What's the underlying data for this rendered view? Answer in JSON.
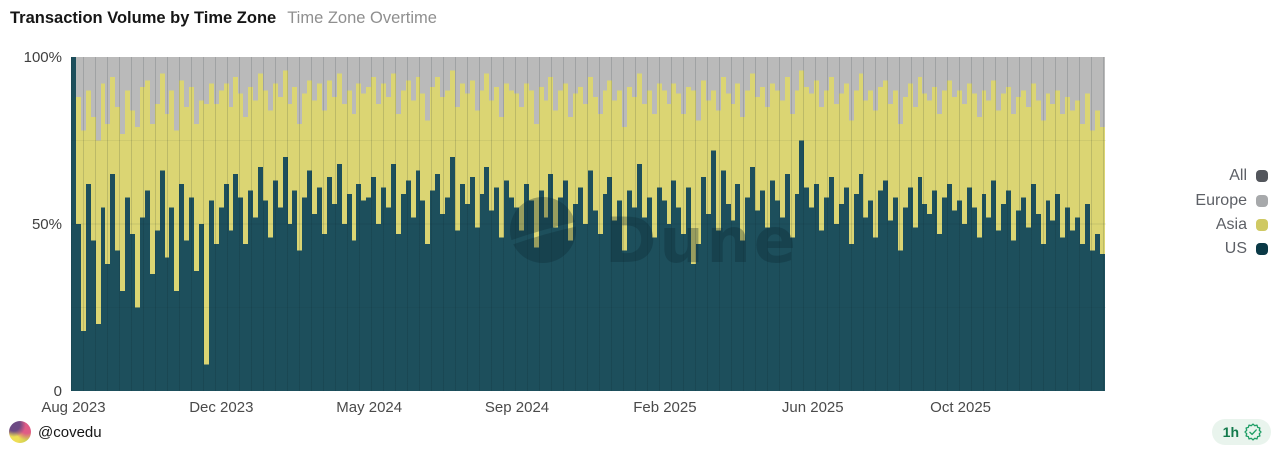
{
  "header": {
    "title": "Transaction Volume by Time Zone",
    "subtitle": "Time Zone Overtime"
  },
  "chart_data": {
    "type": "bar",
    "stacked": "100-percent-stacked",
    "title": "Transaction Volume by Time Zone",
    "x_range": [
      "Aug 2023",
      "Dec 2025"
    ],
    "x_tick_labels": [
      "Aug 2023",
      "Dec 2023",
      "May 2024",
      "Sep 2024",
      "Feb 2025",
      "Jun 2025",
      "Oct 2025"
    ],
    "x_tick_indices": [
      0,
      30,
      60,
      90,
      120,
      150,
      180
    ],
    "y_ticks": [
      {
        "value": 0,
        "label": "0"
      },
      {
        "value": 50,
        "label": "50%"
      },
      {
        "value": 100,
        "label": "100%"
      }
    ],
    "ylim": [
      0,
      100
    ],
    "n_points": 210,
    "grid": "faint vertical lines every ~12px, faint horizontal line at 50%",
    "legend_position": "right",
    "series": [
      {
        "name": "US",
        "color": "#1d4f5c",
        "values": [
          100,
          50,
          18,
          62,
          45,
          20,
          55,
          38,
          65,
          42,
          30,
          58,
          47,
          25,
          52,
          60,
          35,
          48,
          66,
          40,
          55,
          30,
          62,
          45,
          58,
          36,
          50,
          8,
          57,
          44,
          55,
          62,
          48,
          65,
          58,
          44,
          60,
          52,
          67,
          57,
          46,
          63,
          55,
          70,
          50,
          60,
          42,
          58,
          66,
          53,
          61,
          47,
          64,
          56,
          68,
          50,
          59,
          45,
          62,
          57,
          58,
          64,
          50,
          61,
          55,
          68,
          47,
          59,
          63,
          52,
          66,
          57,
          44,
          60,
          65,
          53,
          58,
          70,
          48,
          62,
          56,
          64,
          49,
          59,
          67,
          54,
          61,
          46,
          63,
          58,
          55,
          48,
          62,
          57,
          43,
          60,
          52,
          65,
          49,
          58,
          63,
          45,
          56,
          61,
          50,
          66,
          54,
          47,
          59,
          64,
          51,
          57,
          42,
          60,
          55,
          68,
          52,
          58,
          46,
          61,
          57,
          50,
          63,
          55,
          47,
          61,
          38,
          44,
          64,
          53,
          72,
          48,
          66,
          56,
          51,
          62,
          45,
          58,
          67,
          54,
          60,
          49,
          63,
          57,
          52,
          65,
          46,
          59,
          75,
          61,
          55,
          62,
          48,
          58,
          64,
          50,
          56,
          61,
          44,
          59,
          65,
          52,
          57,
          46,
          60,
          63,
          51,
          58,
          42,
          55,
          61,
          49,
          64,
          56,
          53,
          60,
          47,
          58,
          62,
          54,
          57,
          50,
          61,
          55,
          46,
          59,
          52,
          63,
          48,
          56,
          60,
          45,
          54,
          58,
          49,
          62,
          53,
          44,
          57,
          51,
          59,
          46,
          55,
          48,
          52,
          44,
          56,
          42,
          47,
          41
        ]
      },
      {
        "name": "Asia",
        "color": "#dbd573",
        "values": "remainder: 100 - US - Europe"
      },
      {
        "name": "Europe",
        "color": "#bababa",
        "values": [
          0,
          12,
          22,
          10,
          18,
          25,
          8,
          20,
          6,
          15,
          23,
          10,
          16,
          21,
          9,
          7,
          20,
          14,
          5,
          17,
          10,
          22,
          7,
          15,
          9,
          20,
          13,
          14,
          8,
          14,
          10,
          8,
          15,
          6,
          11,
          18,
          9,
          13,
          5,
          10,
          16,
          8,
          12,
          4,
          14,
          9,
          20,
          11,
          7,
          13,
          8,
          16,
          7,
          12,
          5,
          14,
          10,
          17,
          8,
          11,
          9,
          6,
          14,
          8,
          12,
          5,
          17,
          10,
          7,
          13,
          6,
          11,
          19,
          9,
          6,
          12,
          10,
          4,
          15,
          8,
          11,
          7,
          16,
          10,
          5,
          13,
          9,
          18,
          8,
          10,
          11,
          15,
          8,
          10,
          20,
          9,
          13,
          6,
          16,
          10,
          8,
          18,
          11,
          9,
          14,
          6,
          12,
          17,
          10,
          7,
          13,
          10,
          21,
          9,
          12,
          5,
          14,
          10,
          17,
          8,
          10,
          14,
          8,
          11,
          17,
          9,
          10,
          19,
          7,
          13,
          10,
          16,
          6,
          11,
          14,
          8,
          18,
          10,
          5,
          12,
          9,
          15,
          8,
          10,
          13,
          6,
          17,
          10,
          4,
          9,
          11,
          7,
          15,
          10,
          6,
          14,
          11,
          8,
          19,
          10,
          5,
          13,
          10,
          16,
          9,
          7,
          14,
          10,
          20,
          12,
          8,
          15,
          6,
          11,
          13,
          9,
          17,
          10,
          7,
          12,
          10,
          14,
          8,
          11,
          18,
          10,
          13,
          7,
          16,
          11,
          9,
          17,
          12,
          10,
          15,
          8,
          13,
          19,
          11,
          14,
          10,
          17,
          12,
          16,
          13,
          20,
          11,
          22,
          16,
          21
        ]
      },
      {
        "name": "All",
        "color": "#53565c",
        "values": "legend entry only; no distinct band visible in chart"
      }
    ]
  },
  "legend": {
    "items": [
      {
        "label": "All",
        "color": "#53565c"
      },
      {
        "label": "Europe",
        "color": "#a7a9ab"
      },
      {
        "label": "Asia",
        "color": "#cfc963"
      },
      {
        "label": "US",
        "color": "#0a3946"
      }
    ]
  },
  "watermark": {
    "text": "Dune"
  },
  "footer": {
    "author": "@covedu",
    "age_badge": "1h"
  }
}
